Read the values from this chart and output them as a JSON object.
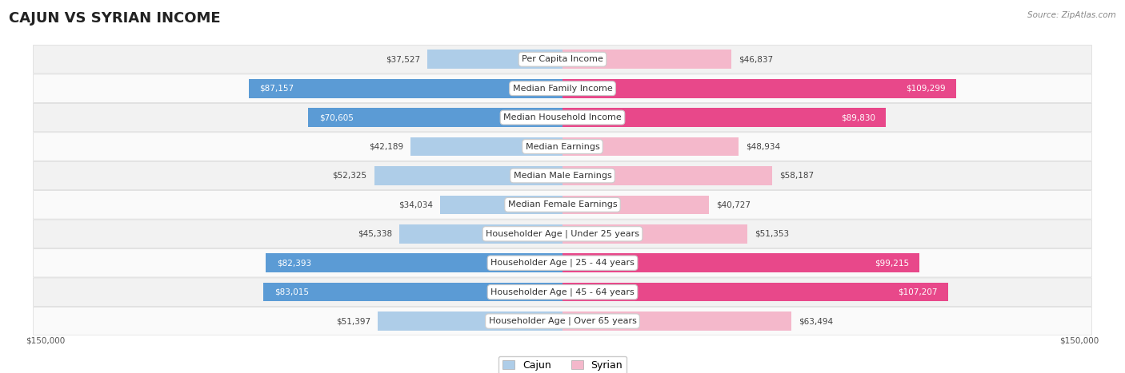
{
  "title": "CAJUN VS SYRIAN INCOME",
  "source": "Source: ZipAtlas.com",
  "categories": [
    "Per Capita Income",
    "Median Family Income",
    "Median Household Income",
    "Median Earnings",
    "Median Male Earnings",
    "Median Female Earnings",
    "Householder Age | Under 25 years",
    "Householder Age | 25 - 44 years",
    "Householder Age | 45 - 64 years",
    "Householder Age | Over 65 years"
  ],
  "cajun_values": [
    37527,
    87157,
    70605,
    42189,
    52325,
    34034,
    45338,
    82393,
    83015,
    51397
  ],
  "syrian_values": [
    46837,
    109299,
    89830,
    48934,
    58187,
    40727,
    51353,
    99215,
    107207,
    63494
  ],
  "cajun_color_light": "#aecde8",
  "cajun_color_dark": "#5b9bd5",
  "syrian_color_light": "#f4b8cb",
  "syrian_color_dark": "#e8488a",
  "max_val": 150000,
  "background_color": "#ffffff",
  "row_color_odd": "#f2f2f2",
  "row_color_even": "#fafafa",
  "title_fontsize": 13,
  "label_fontsize": 8,
  "value_fontsize": 7.5,
  "legend_fontsize": 9,
  "cajun_white_threshold": 60000,
  "syrian_white_threshold": 80000
}
